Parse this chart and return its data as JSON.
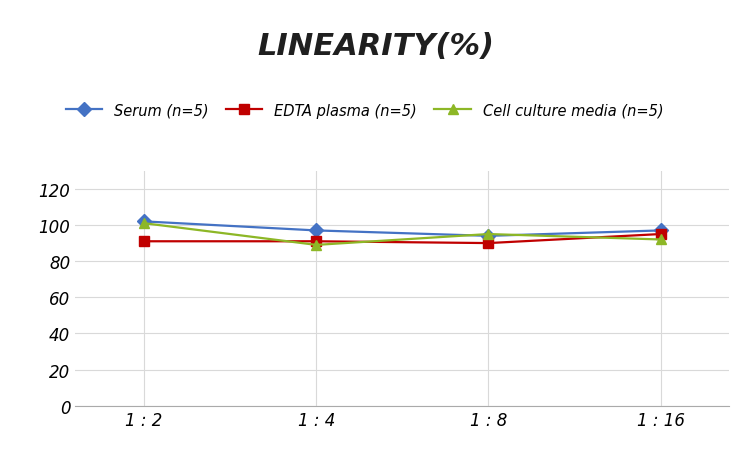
{
  "title": "LINEARITY(%)",
  "title_fontsize": 22,
  "title_style": "italic",
  "title_weight": "bold",
  "x_labels": [
    "1 : 2",
    "1 : 4",
    "1 : 8",
    "1 : 16"
  ],
  "x_positions": [
    0,
    1,
    2,
    3
  ],
  "series": [
    {
      "label": "Serum (n=5)",
      "color": "#4472C4",
      "marker": "D",
      "marker_color": "#4472C4",
      "values": [
        102,
        97,
        94,
        97
      ]
    },
    {
      "label": "EDTA plasma (n=5)",
      "color": "#C00000",
      "marker": "s",
      "marker_color": "#C00000",
      "values": [
        91,
        91,
        90,
        95
      ]
    },
    {
      "label": "Cell culture media (n=5)",
      "color": "#8DB726",
      "marker": "^",
      "marker_color": "#8DB726",
      "values": [
        101,
        89,
        95,
        92
      ]
    }
  ],
  "ylim": [
    0,
    130
  ],
  "yticks": [
    0,
    20,
    40,
    60,
    80,
    100,
    120
  ],
  "grid_color": "#D9D9D9",
  "background_color": "#FFFFFF",
  "legend_fontsize": 10.5,
  "tick_fontsize": 12,
  "line_width": 1.6,
  "marker_size": 7
}
